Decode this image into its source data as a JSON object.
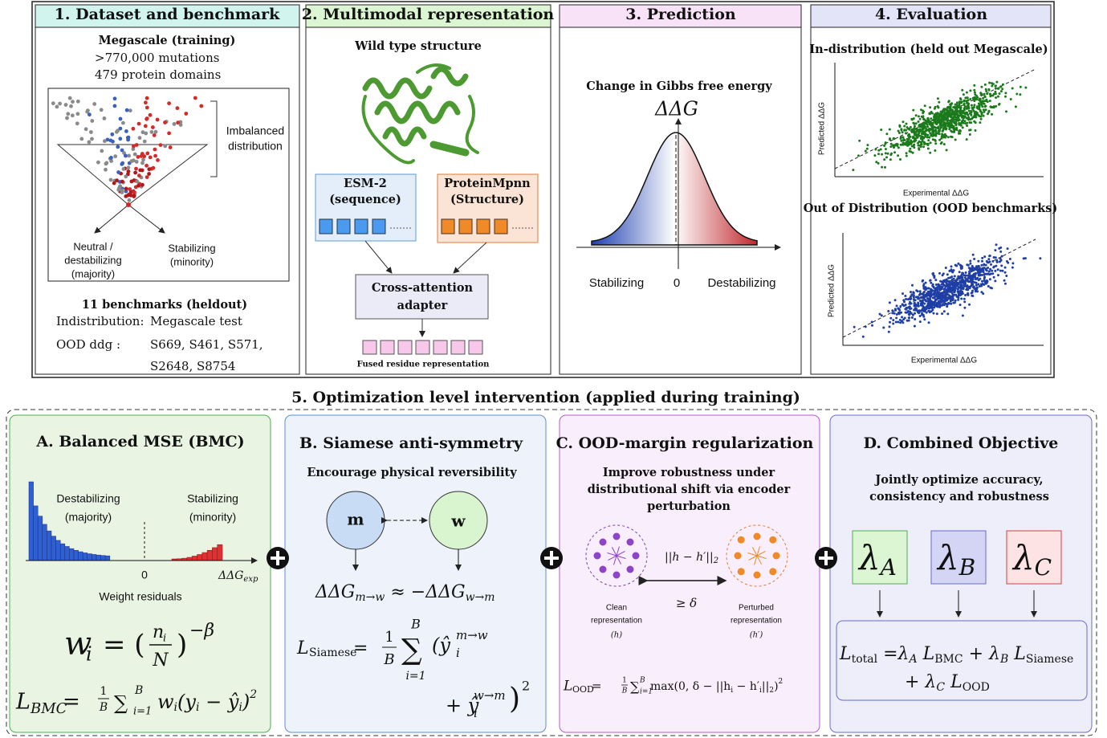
{
  "dataset": {
    "title": "1. Dataset and benchmark",
    "training_title": "Megascale (training)",
    "training_lines": [
      ">770,000 mutations",
      "479 protein domains"
    ],
    "imbalance_label": [
      "Imbalanced",
      "distribution"
    ],
    "neutral_label": [
      "Neutral /",
      "destabilizing",
      "(majority)"
    ],
    "stabilizing_label": [
      "Stabilizing",
      "(minority)"
    ],
    "benchmark_title": "11 benchmarks (heldout)",
    "benchmarks": [
      [
        "Indistribution:",
        "Megascale test"
      ],
      [
        "OOD ddg :",
        "S669, S461, S571,"
      ]
    ],
    "benchmark_continuation": "S2648, S8754"
  },
  "representation": {
    "title": "2. Multimodal representation",
    "structure_label": "Wild type structure",
    "sequence_encoder": [
      "ESM-2",
      "(sequence)"
    ],
    "structure_encoder": [
      "ProteinMpnn",
      "(Structure)"
    ],
    "adapter": [
      "Cross-attention",
      "adapter"
    ],
    "fused_label": "Fused residue representation"
  },
  "prediction": {
    "title": "3. Prediction",
    "subtitle": "Change in Gibbs free energy",
    "symbol": "ΔΔG",
    "left_label": "Stabilizing",
    "center_label": "0",
    "right_label": "Destabilizing"
  },
  "evaluation": {
    "title": "4. Evaluation",
    "plots": [
      {
        "title": "In-distribution (held out Megascale)",
        "x_label": "Experimental ΔΔG",
        "y_label": "Predicted ΔΔG",
        "color": "#1b7a1b"
      },
      {
        "title": "Out of Distribution (OOD benchmarks)",
        "x_label": "Experimental ΔΔG",
        "y_label": "Predicted ΔΔG",
        "color": "#1f3fa6"
      }
    ]
  },
  "optimization": {
    "title": "5. Optimization level intervention (applied during training)",
    "boxes": [
      {
        "title": "A. Balanced MSE (BMC)",
        "majority_label": [
          "Destabilizing",
          "(majority)"
        ],
        "minority_label": [
          "Stabilizing",
          "(minority)"
        ],
        "axis_zero": "0",
        "axis_end": [
          "ΔΔG",
          "exp"
        ],
        "x_label": "Weight residuals",
        "weight_formula": [
          "w",
          "i",
          "= (",
          "n",
          "i",
          "N",
          ")",
          "−β"
        ],
        "loss_formula": [
          "L",
          "BMC",
          " = ",
          "1",
          "B",
          "∑",
          "B",
          "i=1",
          "w",
          "i",
          "(y",
          "i",
          " − ",
          "ŷ",
          "i",
          ")",
          "2"
        ]
      },
      {
        "title": "B. Siamese anti-symmetry",
        "subtitle": "Encourage physical reversibility",
        "nodes": [
          "m",
          "w"
        ],
        "relation": [
          "ΔΔG",
          "m→w",
          " ≈ −ΔΔG",
          "w→m"
        ],
        "loss_formula": [
          "L",
          "Siamese",
          " = ",
          "1",
          "B",
          "∑",
          "B",
          "i=1",
          "(ŷ",
          "m→w",
          "i",
          "+ ŷ",
          "w→m",
          "i",
          ")",
          "2"
        ]
      },
      {
        "title": "C. OOD-margin regularization",
        "subtitle": [
          "Improve robustness under",
          "distributional shift via encoder",
          "perturbation"
        ],
        "distance": [
          "||h − h′||",
          "2"
        ],
        "margin": "≥ δ",
        "clean_label": [
          "Clean",
          "representation",
          "(h)"
        ],
        "perturbed_label": [
          "Perturbed",
          "representation",
          "(h′)"
        ],
        "loss_formula": [
          "L",
          "OOD",
          " = ",
          "1",
          "B",
          "∑",
          "B",
          "i=1",
          " max(0, δ − ||h",
          "i",
          " − h′",
          "i",
          "||",
          "2",
          ")",
          "2"
        ]
      },
      {
        "title": "D. Combined Objective",
        "subtitle": [
          "Jointly optimize accuracy,",
          "consistency and robustness"
        ],
        "weights": [
          [
            "λ",
            "A"
          ],
          [
            "λ",
            "B"
          ],
          [
            "λ",
            "C"
          ]
        ],
        "total_formula": [
          "L",
          "total",
          " =λ",
          "A",
          " L",
          "BMC",
          " + λ",
          "B",
          " L",
          "Siamese",
          "+ λ",
          "C",
          " L",
          "OOD"
        ]
      }
    ]
  }
}
